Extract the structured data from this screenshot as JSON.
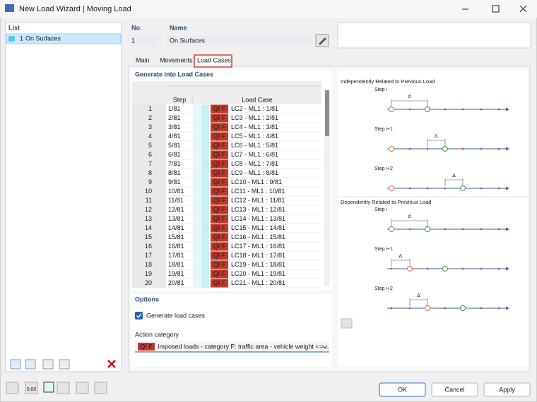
{
  "window": {
    "title": "New Load Wizard | Moving Load"
  },
  "list": {
    "header": "List",
    "items": [
      {
        "no": "1",
        "name": "On Surfaces"
      }
    ]
  },
  "fields": {
    "no_label": "No.",
    "no_value": "1",
    "name_label": "Name",
    "name_value": "On Surfaces"
  },
  "tabs": [
    "Main",
    "Movements",
    "Load Cases"
  ],
  "load_cases": {
    "header": "Generate into Load Cases",
    "columns": [
      "Step",
      "Load Case"
    ],
    "rows": [
      [
        "1",
        "1/81",
        "QI F",
        "LC2 - ML1 : 1/81"
      ],
      [
        "2",
        "2/81",
        "QI F",
        "LC3 - ML1 : 2/81"
      ],
      [
        "3",
        "3/81",
        "QI F",
        "LC4 - ML1 : 3/81"
      ],
      [
        "4",
        "4/81",
        "QI F",
        "LC5 - ML1 : 4/81"
      ],
      [
        "5",
        "5/81",
        "QI F",
        "LC6 - ML1 : 5/81"
      ],
      [
        "6",
        "6/81",
        "QI F",
        "LC7 - ML1 : 6/81"
      ],
      [
        "7",
        "7/81",
        "QI F",
        "LC8 - ML1 : 7/81"
      ],
      [
        "8",
        "8/81",
        "QI F",
        "LC9 - ML1 : 8/81"
      ],
      [
        "9",
        "9/81",
        "QI F",
        "LC10 - ML1 : 9/81"
      ],
      [
        "10",
        "10/81",
        "QI F",
        "LC11 - ML1 : 10/81"
      ],
      [
        "11",
        "11/81",
        "QI F",
        "LC12 - ML1 : 11/81"
      ],
      [
        "12",
        "12/81",
        "QI F",
        "LC13 - ML1 : 12/81"
      ],
      [
        "13",
        "13/81",
        "QI F",
        "LC14 - ML1 : 13/81"
      ],
      [
        "14",
        "14/81",
        "QI F",
        "LC15 - ML1 : 14/81"
      ],
      [
        "15",
        "15/81",
        "QI F",
        "LC16 - ML1 : 15/81"
      ],
      [
        "16",
        "16/81",
        "QI F",
        "LC17 - ML1 : 16/81"
      ],
      [
        "17",
        "17/81",
        "QI F",
        "LC18 - ML1 : 17/81"
      ],
      [
        "18",
        "18/81",
        "QI F",
        "LC19 - ML1 : 18/81"
      ],
      [
        "19",
        "19/81",
        "QI F",
        "LC20 - ML1 : 19/81"
      ],
      [
        "20",
        "20/81",
        "QI F",
        "LC21 - ML1 : 20/81"
      ]
    ]
  },
  "options": {
    "header": "Options",
    "checkbox": "Generate load cases",
    "action_label": "Action category",
    "action_tag": "QI F",
    "action_value": "Imposed loads - category F: traffic area - vehicle weight <= ..."
  },
  "diagram": {
    "sections": [
      {
        "title": "Independently Related to Previous Load",
        "steps": [
          {
            "label": "Step i",
            "dim": "d"
          },
          {
            "label": "Step i+1",
            "dim": "Δ"
          },
          {
            "label": "Step i+2",
            "dim": "Δ"
          }
        ]
      },
      {
        "title": "Dependently Related to Previous Load",
        "steps": [
          {
            "label": "Step i",
            "dim": "d"
          },
          {
            "label": "Step i+1",
            "dim": "Δ"
          },
          {
            "label": "Step i+2",
            "dim": "Δ"
          }
        ]
      }
    ]
  },
  "toolbar": {
    "value_icon": "0,00"
  },
  "buttons": [
    "OK",
    "Cancel",
    "Apply"
  ]
}
